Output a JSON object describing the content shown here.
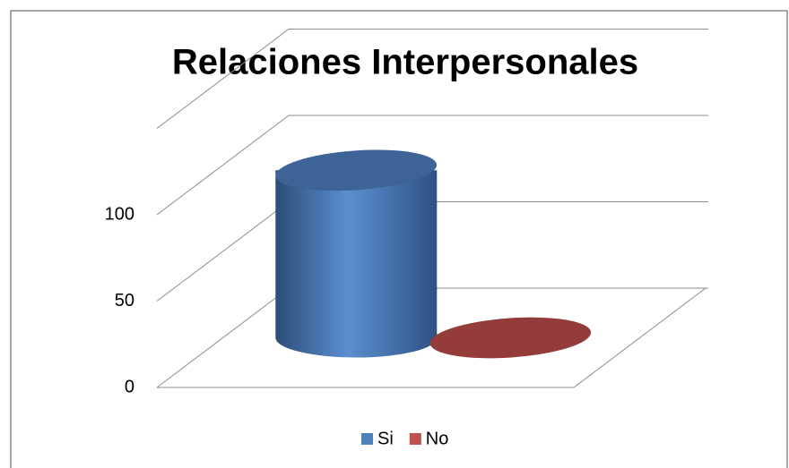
{
  "chart_data": {
    "type": "bar3d",
    "title": "Relaciones Interpersonales",
    "categories": [
      null
    ],
    "series": [
      {
        "name": "Si",
        "color": "#4f81bd",
        "values": [
          100
        ]
      },
      {
        "name": "No",
        "color": "#c0504d",
        "values": [
          0
        ]
      }
    ],
    "ylim": [
      0,
      150
    ],
    "yticks": [
      0,
      50,
      100
    ],
    "grid": true,
    "legend": "bottom"
  }
}
